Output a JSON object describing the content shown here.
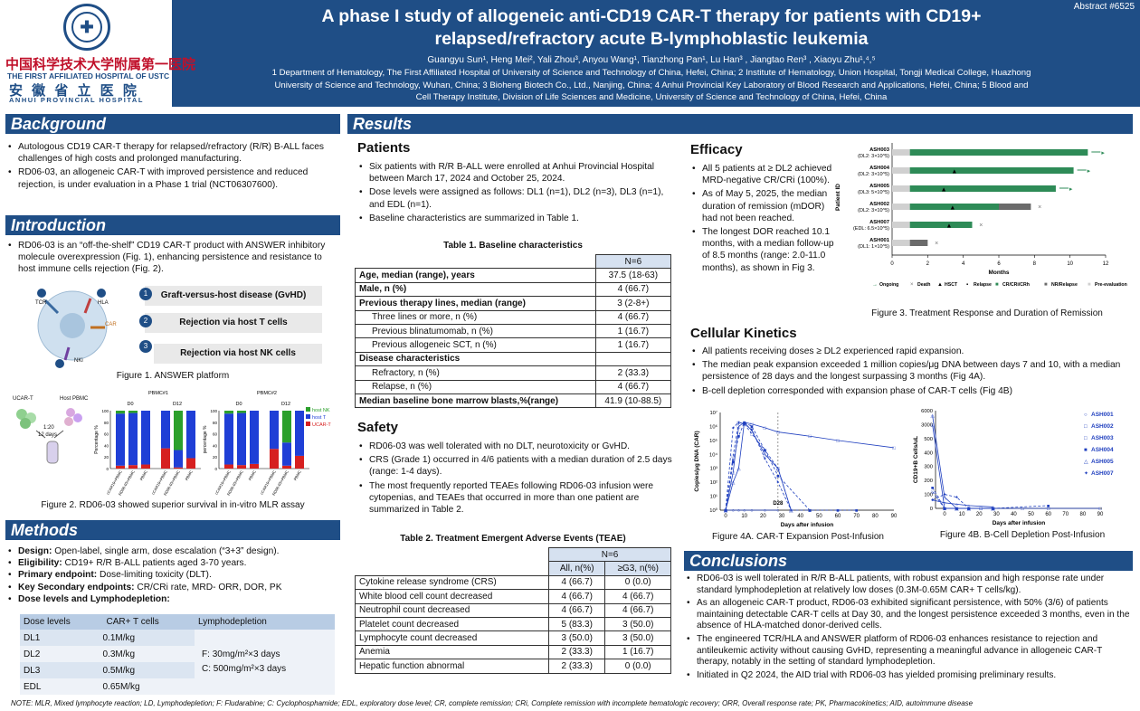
{
  "header": {
    "abstract_no": "Abstract #6525",
    "title_line1": "A phase I study of allogeneic anti-CD19 CAR-T therapy for patients with CD19+",
    "title_line2": "relapsed/refractory acute B-lymphoblastic leukemia",
    "authors": "Guangyu Sun¹, Heng Mei², Yali Zhou³, Anyou Wang¹, Tianzhong Pan¹, Lu Han³ , Jiangtao Ren³ , Xiaoyu Zhu¹,⁴,⁵",
    "affil1": "1 Department of Hematology, The First Affiliated Hospital of University of Science and Technology of China, Hefei, China; 2 Institute of Hematology, Union Hospital, Tongji Medical College, Huazhong",
    "affil2": "University of Science and Technology, Wuhan, China; 3 Bioheng Biotech Co., Ltd., Nanjing, China; 4 Anhui Provincial Key Laboratory of Blood Research and Applications, Hefei, China; 5 Blood and",
    "affil3": "Cell Therapy Institute, Division of Life Sciences and Medicine, University of Science and Technology of China, Hefei, China",
    "hospital_cn": "中国科学技术大学附属第一医院",
    "hospital_en": "THE FIRST AFFILIATED HOSPITAL OF USTC",
    "hospital_cn2": "安 徽 省 立 医 院",
    "hospital_en2": "ANHUI  PROVINCIAL  HOSPITAL"
  },
  "background": {
    "heading": "Background",
    "items": [
      "Autologous CD19 CAR-T therapy for relapsed/refractory (R/R) B-ALL faces challenges of high costs and prolonged manufacturing.",
      "RD06-03, an allogeneic CAR-T with improved persistence and reduced rejection, is under evaluation in a Phase 1 trial (NCT06307600)."
    ]
  },
  "introduction": {
    "heading": "Introduction",
    "items": [
      "RD06-03 is an “off-the-shelf” CD19 CAR-T product with ANSWER inhibitory molecule overexpression (Fig. 1), enhancing persistence and resistance to host immune cells rejection (Fig. 2)."
    ],
    "fig1_boxes": [
      "Graft-versus-host disease (GvHD)",
      "Rejection via host T cells",
      "Rejection via host NK cells"
    ],
    "fig1_nums": [
      "1",
      "2",
      "3"
    ],
    "fig1_labels": {
      "tcr": "TCR",
      "hla": "HLA",
      "car": "CAR",
      "nki": "NKi"
    },
    "fig1_caption": "Figure 1. ANSWER platform",
    "fig2": {
      "ucart": "UCAR-T",
      "hostpbmc": "Host PBMC",
      "ratio": "1:20",
      "days": "12 days",
      "pbmc1": "PBMC#1",
      "pbmc2": "PBMC#2",
      "d0": "D0",
      "d12": "D12",
      "ylabel": "Percentage %",
      "ylabel2": "percentage %",
      "yticks": [
        "100",
        "80",
        "60",
        "40",
        "20",
        "0"
      ],
      "xcats": [
        "cCAR19+PBMC",
        "RD06-03+PBMC",
        "PBMC"
      ],
      "legend": [
        "host NK",
        "host T",
        "UCAR-T"
      ],
      "colors": {
        "nk": "#2ca02c",
        "t": "#1f3fd6",
        "ucart": "#d62020"
      },
      "chart1": {
        "d0": [
          [
            5,
            90,
            5
          ],
          [
            4,
            90,
            6
          ],
          [
            0,
            93,
            7
          ]
        ],
        "d12": [
          [
            0,
            65,
            35
          ],
          [
            68,
            30,
            2
          ],
          [
            0,
            82,
            18
          ]
        ]
      },
      "chart2": {
        "d0": [
          [
            5,
            88,
            7
          ],
          [
            4,
            90,
            6
          ],
          [
            0,
            92,
            8
          ]
        ],
        "d12": [
          [
            0,
            66,
            34
          ],
          [
            55,
            40,
            5
          ],
          [
            0,
            78,
            22
          ]
        ]
      }
    },
    "fig2_caption": "Figure 2. RD06-03 showed superior survival in in-vitro MLR assay"
  },
  "methods": {
    "heading": "Methods",
    "items": [
      {
        "b": "Design:",
        "t": " Open-label, single arm, dose escalation (“3+3” design)."
      },
      {
        "b": "Eligibility:",
        "t": " CD19+ R/R B-ALL patients aged 3-70 years."
      },
      {
        "b": "Primary endpoint:",
        "t": " Dose-limiting toxicity (DLT)."
      },
      {
        "b": "Key Secondary endpoints:",
        "t": " CR/CRi rate, MRD- ORR, DOR, PK"
      },
      {
        "b": "Dose levels and Lymphodepletion:",
        "t": ""
      }
    ],
    "dose_table": {
      "headers": [
        "Dose levels",
        "CAR+ T cells",
        "Lymphodepletion"
      ],
      "rows": [
        [
          "DL1",
          "0.1M/kg"
        ],
        [
          "DL2",
          "0.3M/kg"
        ],
        [
          "DL3",
          "0.5M/kg"
        ],
        [
          "EDL",
          "0.65M/kg"
        ]
      ],
      "ld1": "F:   30mg/m²×3 days",
      "ld2": "C:   500mg/m²×3 days"
    }
  },
  "results": {
    "heading": "Results"
  },
  "patients": {
    "heading": "Patients",
    "items": [
      "Six patients with R/R B-ALL were enrolled at Anhui Provincial Hospital between March 17, 2024 and October 25, 2024.",
      "Dose levels were assigned as follows: DL1 (n=1), DL2 (n=3), DL3 (n=1), and EDL (n=1).",
      "Baseline characteristics are summarized in Table 1."
    ],
    "table_title": "Table 1. Baseline characteristics",
    "table_hdr": "N=6",
    "rows": [
      {
        "l": "Age, median (range), years",
        "v": "37.5 (18-63)",
        "b": true
      },
      {
        "l": "Male, n (%)",
        "v": "4 (66.7)",
        "b": true
      },
      {
        "l": "Previous therapy lines, median (range)",
        "v": "3 (2-8+)",
        "b": true
      },
      {
        "l": "Three lines or more, n (%)",
        "v": "4 (66.7)",
        "i": true
      },
      {
        "l": "Previous blinatumomab, n (%)",
        "v": "1 (16.7)",
        "i": true
      },
      {
        "l": "Previous allogeneic SCT, n (%)",
        "v": "1 (16.7)",
        "i": true
      },
      {
        "l": "Disease characteristics",
        "v": "",
        "b": true
      },
      {
        "l": "Refractory, n (%)",
        "v": "2 (33.3)",
        "i": true
      },
      {
        "l": "Relapse, n (%)",
        "v": "4 (66.7)",
        "i": true
      },
      {
        "l": "Median baseline bone marrow blasts,%(range)",
        "v": "41.9 (10-88.5)",
        "b": true
      }
    ]
  },
  "safety": {
    "heading": "Safety",
    "items": [
      "RD06-03 was well tolerated with no DLT, neurotoxicity or GvHD.",
      "CRS (Grade 1) occurred in 4/6 patients with a median duration of 2.5 days (range: 1-4 days).",
      "The most frequently reported TEAEs following RD06-03 infusion were cytopenias, and TEAEs that occurred in more than one patient are summarized in Table 2."
    ],
    "table_title": "Table 2. Treatment Emergent Adverse Events (TEAE)",
    "hdr_n": "N=6",
    "hdr_all": "All, n(%)",
    "hdr_g3": "≥G3, n(%)",
    "rows": [
      [
        "Cytokine release syndrome (CRS)",
        "4 (66.7)",
        "0 (0.0)"
      ],
      [
        "White blood cell count decreased",
        "4 (66.7)",
        "4 (66.7)"
      ],
      [
        "Neutrophil count decreased",
        "4 (66.7)",
        "4 (66.7)"
      ],
      [
        "Platelet count decreased",
        "5 (83.3)",
        "3 (50.0)"
      ],
      [
        "Lymphocyte count decreased",
        "3 (50.0)",
        "3 (50.0)"
      ],
      [
        "Anemia",
        "2 (33.3)",
        "1 (16.7)"
      ],
      [
        "Hepatic function abnormal",
        "2 (33.3)",
        "0 (0.0)"
      ]
    ]
  },
  "efficacy": {
    "heading": "Efficacy",
    "items": [
      "All 5 patients at ≥ DL2 achieved MRD-negative CR/CRi (100%).",
      "As of May 5, 2025, the median duration of remission (mDOR) had not been reached.",
      "The longest DOR reached 10.1 months, with a median follow-up of 8.5 months (range: 2.0-11.0 months), as shown in Fig 3."
    ],
    "fig3_caption": "Figure 3. Treatment Response and Duration of Remission"
  },
  "kinetics": {
    "heading": "Cellular Kinetics",
    "items": [
      "All patients receiving doses ≥ DL2 experienced rapid expansion.",
      "The median peak expansion exceeded 1 million copies/μg DNA between days 7 and 10, with a median persistence of 28 days and the longest surpassing 3 months (Fig 4A).",
      "B-cell depletion corresponded with expansion phase of CAR-T cells (Fig 4B)"
    ],
    "fig4a_caption": "Figure 4A. CAR-T Expansion Post-Infusion",
    "fig4b_caption": "Figure 4B. B-Cell Depletion Post-Infusion"
  },
  "conclusions": {
    "heading": "Conclusions",
    "items": [
      "RD06-03 is well tolerated in R/R B-ALL patients, with robust expansion and high response rate under standard lymphodepletion at relatively low doses (0.3M-0.65M CAR+ T cells/kg).",
      "As an allogeneic CAR-T product, RD06-03 exhibited significant persistence, with 50% (3/6) of patients maintaining detectable CAR-T cells at Day 30, and the longest persistence exceeded 3 months, even in the absence of HLA-matched donor-derived cells.",
      "The engineered TCR/HLA and ANSWER platform of RD06-03 enhances resistance to rejection and antileukemic activity without causing GvHD, representing a meaningful advance in allogeneic CAR-T therapy, notably in the setting of standard lymphodepletion.",
      "Initiated in Q2 2024, the AID trial with RD06-03 has yielded promising preliminary results."
    ]
  },
  "note": "NOTE: MLR, Mixed lymphocyte reaction; LD, Lymphodepletion; F: Fludarabine; C: Cyclophosphamide; EDL, exploratory dose level; CR, complete remission; CRi, Complete remission with incomplete hematologic recovery; ORR, Overall response rate; PK, Pharmacokinetics; AID, autoimmune disease",
  "chart_data": [
    {
      "type": "bar",
      "title": "",
      "xlabel": "Months",
      "ylabel": "Patient ID",
      "xlim": [
        0,
        12
      ],
      "xticks": [
        "0",
        "2",
        "4",
        "6",
        "8",
        "10",
        "12"
      ],
      "categories": [
        "ASH003",
        "ASH004",
        "ASH005",
        "ASH002",
        "ASH007",
        "ASH001"
      ],
      "category_sub": [
        "(DL2: 3×10^5)",
        "(DL2: 3×10^5)",
        "(DL3: 5×10^5)",
        "(DL2: 3×10^5)",
        "(EDL: 6.5×10^5)",
        "(DL1: 1×10^5)"
      ],
      "pre_eval": [
        1,
        1,
        1,
        1,
        1,
        1
      ],
      "cr_end": [
        11,
        10.2,
        9.2,
        6,
        4.5,
        0
      ],
      "nr_end": [
        0,
        0,
        0,
        7.8,
        0,
        2
      ],
      "hsct": [
        0,
        3.5,
        2.9,
        3.4,
        3.2,
        0
      ],
      "death": [
        0,
        0,
        0,
        8.3,
        5,
        2.5
      ],
      "ongoing": [
        1,
        1,
        1,
        0,
        0,
        0
      ],
      "legend": [
        "Ongoing",
        "Death",
        "HSCT",
        "Relapse",
        "CR/CRi/CRh",
        "NR/Relapse",
        "Pre-evaluation"
      ],
      "colors": {
        "cr": "#2e8b57",
        "nr": "#6b6b6b",
        "pre": "#d0d0d0"
      }
    },
    {
      "type": "line",
      "title": "",
      "xlabel": "Days after infusion",
      "ylabel": "Copies/μg DNA (CAR)",
      "ylog": true,
      "yticks": [
        "10⁷",
        "10⁶",
        "10⁵",
        "10⁴",
        "10³",
        "10²",
        "10¹",
        "10⁰"
      ],
      "xticks": [
        "0",
        "10",
        "20",
        "30",
        "40",
        "50",
        "60",
        "70",
        "80",
        "90"
      ],
      "annotation": "D28",
      "series": [
        {
          "name": "ASH001",
          "x": [
            0,
            4,
            7,
            10,
            14,
            21,
            28
          ],
          "y": [
            1,
            1,
            1,
            1,
            1,
            1,
            1
          ]
        },
        {
          "name": "ASH002",
          "x": [
            0,
            4,
            7,
            10,
            14,
            21,
            28,
            35,
            45
          ],
          "y": [
            1,
            8000,
            2000000,
            1500000,
            300000,
            20000,
            1000,
            1,
            1
          ]
        },
        {
          "name": "ASH003",
          "x": [
            0,
            4,
            7,
            10,
            14,
            21,
            28,
            45,
            60,
            90
          ],
          "y": [
            1,
            500,
            1000000,
            2000000,
            1500000,
            800000,
            400000,
            200000,
            100000,
            30000
          ]
        },
        {
          "name": "ASH004",
          "x": [
            0,
            4,
            7,
            10,
            14,
            21,
            28,
            45,
            60,
            70
          ],
          "y": [
            1,
            3000,
            200000,
            2000000,
            1000000,
            20000,
            300,
            1,
            1,
            1
          ]
        },
        {
          "name": "ASH005",
          "x": [
            0,
            4,
            7,
            10,
            14,
            21,
            28,
            35
          ],
          "y": [
            1,
            100,
            1000,
            2000000,
            500000,
            10000,
            1000,
            1
          ]
        },
        {
          "name": "ASH007",
          "x": [
            0,
            4,
            7,
            10,
            14,
            21,
            28,
            35
          ],
          "y": [
            1,
            800000,
            2000000,
            1500000,
            600000,
            5000,
            100,
            1
          ]
        }
      ]
    },
    {
      "type": "line",
      "title": "",
      "xlabel": "Days after infusion",
      "ylabel": "CD19+B Cells/uL",
      "yticks": [
        "6000",
        "3000",
        "500",
        "400",
        "300",
        "200",
        "100",
        "0"
      ],
      "xticks": [
        "0",
        "10",
        "20",
        "30",
        "40",
        "50",
        "60",
        "70",
        "80",
        "90"
      ],
      "series": [
        {
          "name": "ASH001",
          "x": [
            -7,
            0,
            7,
            14,
            28
          ],
          "y": [
            60,
            40,
            30,
            20,
            10
          ]
        },
        {
          "name": "ASH002",
          "x": [
            -7,
            0,
            7,
            14,
            21,
            28
          ],
          "y": [
            120,
            0,
            0,
            0,
            0,
            0
          ]
        },
        {
          "name": "ASH003",
          "x": [
            -7,
            0,
            7,
            14,
            21,
            28,
            45,
            60,
            90
          ],
          "y": [
            3000,
            0,
            0,
            0,
            0,
            0,
            0,
            0,
            0
          ]
        },
        {
          "name": "ASH004",
          "x": [
            -7,
            0,
            7,
            14,
            28,
            60
          ],
          "y": [
            150,
            0,
            0,
            0,
            0,
            20
          ]
        },
        {
          "name": "ASH005",
          "x": [
            -7,
            0,
            7,
            14,
            28
          ],
          "y": [
            5000,
            80,
            0,
            0,
            0
          ]
        },
        {
          "name": "ASH007",
          "x": [
            -7,
            0,
            7,
            14,
            28
          ],
          "y": [
            60,
            100,
            80,
            0,
            0
          ]
        }
      ]
    }
  ]
}
